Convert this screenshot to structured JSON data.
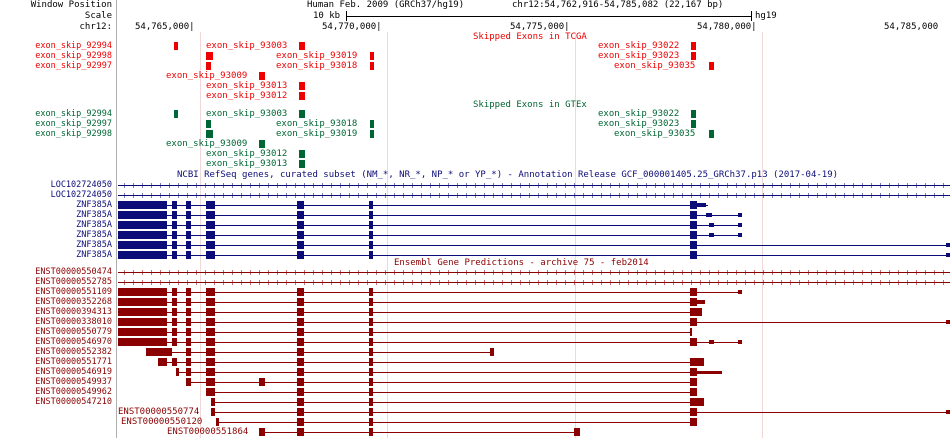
{
  "header": {
    "window_position_label": "Window Position",
    "scale_label": "Scale",
    "chrom_label": "chr12:",
    "assembly": "Human Feb. 2009 (GRCh37/hg19)",
    "position": "chr12:54,762,916-54,785,082 (22,167 bp)",
    "scale_bar": "10 kb",
    "db": "hg19",
    "ruler_ticks": [
      "54,765,000|",
      "54,770,000|",
      "54,775,000|",
      "54,780,000|",
      "54,785,000"
    ]
  },
  "colors": {
    "tcga": "#ee0000",
    "gtex": "#006633",
    "refseq": "#0c0c78",
    "ensembl": "#8b0000",
    "grid": "#f0d8d8"
  },
  "tracks": {
    "tcga": {
      "title": "Skipped Exons in TCGA",
      "items": [
        "exon_skip_92994",
        "exon_skip_92998",
        "exon_skip_92997",
        "exon_skip_93009",
        "exon_skip_93013",
        "exon_skip_93012",
        "exon_skip_93003",
        "exon_skip_93019",
        "exon_skip_93018",
        "exon_skip_93022",
        "exon_skip_93023",
        "exon_skip_93035"
      ]
    },
    "gtex": {
      "title": "Skipped Exons in GTEx",
      "items": [
        "exon_skip_92994",
        "exon_skip_92997",
        "exon_skip_92998",
        "exon_skip_93009",
        "exon_skip_93012",
        "exon_skip_93013",
        "exon_skip_93003",
        "exon_skip_93018",
        "exon_skip_93019",
        "exon_skip_93022",
        "exon_skip_93023",
        "exon_skip_93035"
      ]
    },
    "refseq": {
      "title": "NCBI RefSeq genes, curated subset (NM_*, NR_*, NP_* or YP_*) - Annotation Release GCF_000001405.25_GRCh37.p13 (2017-04-19)",
      "items": [
        "LOC102724050",
        "LOC102724050",
        "ZNF385A",
        "ZNF385A",
        "ZNF385A",
        "ZNF385A",
        "ZNF385A",
        "ZNF385A"
      ]
    },
    "ensembl": {
      "title": "Ensembl Gene Predictions - archive 75 - feb2014",
      "items": [
        "ENST00000550474",
        "ENST00000552785",
        "ENST00000551109",
        "ENST00000352268",
        "ENST00000394313",
        "ENST00000338010",
        "ENST00000550779",
        "ENST00000546970",
        "ENST00000552382",
        "ENST00000551771",
        "ENST00000546919",
        "ENST00000549937",
        "ENST00000549962",
        "ENST00000547210",
        "ENST00000550774",
        "ENST00000550120",
        "ENST00000551864"
      ]
    }
  }
}
